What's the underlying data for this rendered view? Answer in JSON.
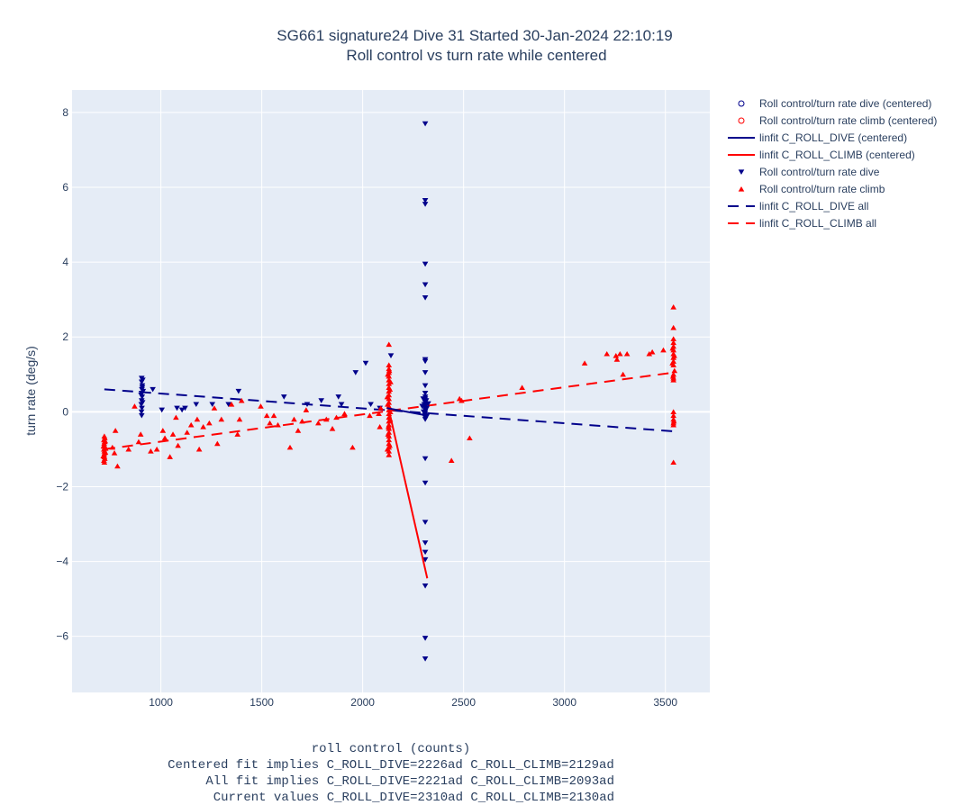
{
  "chart_data": {
    "type": "scatter",
    "title": "SG661 signature24 Dive 31 Started 30-Jan-2024 22:10:19",
    "subtitle": "Roll control vs turn rate while centered",
    "xlabel_lines": [
      "roll control (counts)",
      "Centered fit implies C_ROLL_DIVE=2226ad C_ROLL_CLIMB=2129ad",
      "All fit implies C_ROLL_DIVE=2221ad C_ROLL_CLIMB=2093ad",
      "Current values C_ROLL_DIVE=2310ad C_ROLL_CLIMB=2130ad"
    ],
    "ylabel": "turn rate (deg/s)",
    "xlim": [
      560,
      3720
    ],
    "ylim": [
      -7.5,
      8.6
    ],
    "x_ticks": [
      1000,
      1500,
      2000,
      2500,
      3000,
      3500
    ],
    "y_ticks": [
      -6,
      -4,
      -2,
      0,
      2,
      4,
      6,
      8
    ],
    "grid": true,
    "legend_position": "right",
    "colors": {
      "dive": "#00008b",
      "climb": "#ff0000",
      "plot_bg": "#e5ecf6",
      "grid": "#ffffff"
    },
    "series": [
      {
        "name": "Roll control/turn rate dive (centered)",
        "kind": "markers",
        "marker": "circle-open",
        "color": "#00008b",
        "points": []
      },
      {
        "name": "Roll control/turn rate climb (centered)",
        "kind": "markers",
        "marker": "circle-open",
        "color": "#ff0000",
        "points": []
      },
      {
        "name": "linfit C_ROLL_DIVE (centered)",
        "kind": "line",
        "dash": "solid",
        "color": "#00008b",
        "points": [
          [
            2120,
            0.1
          ],
          [
            2320,
            -0.1
          ]
        ]
      },
      {
        "name": "linfit C_ROLL_CLIMB (centered)",
        "kind": "line",
        "dash": "solid",
        "color": "#ff0000",
        "points": [
          [
            2130,
            0.05
          ],
          [
            2320,
            -4.45
          ]
        ]
      },
      {
        "name": "Roll control/turn rate dive",
        "kind": "markers",
        "marker": "triangle-down",
        "color": "#00008b",
        "points": [
          [
            905,
            0.9
          ],
          [
            905,
            0.8
          ],
          [
            908,
            0.7
          ],
          [
            906,
            0.6
          ],
          [
            904,
            0.5
          ],
          [
            907,
            0.4
          ],
          [
            905,
            0.3
          ],
          [
            903,
            0.2
          ],
          [
            906,
            0.1
          ],
          [
            904,
            0.0
          ],
          [
            905,
            -0.1
          ],
          [
            910,
            0.85
          ],
          [
            908,
            0.65
          ],
          [
            902,
            0.45
          ],
          [
            909,
            0.25
          ],
          [
            912,
            0.55
          ],
          [
            960,
            0.6
          ],
          [
            1005,
            0.05
          ],
          [
            1080,
            0.1
          ],
          [
            1105,
            0.05
          ],
          [
            1120,
            0.1
          ],
          [
            1175,
            0.2
          ],
          [
            1255,
            0.2
          ],
          [
            1335,
            0.2
          ],
          [
            1385,
            0.55
          ],
          [
            1610,
            0.4
          ],
          [
            1725,
            0.2
          ],
          [
            1795,
            0.3
          ],
          [
            1880,
            0.4
          ],
          [
            1895,
            0.2
          ],
          [
            1965,
            1.05
          ],
          [
            2015,
            1.3
          ],
          [
            2040,
            0.2
          ],
          [
            2085,
            0.1
          ],
          [
            2140,
            1.5
          ],
          [
            2310,
            0.4
          ],
          [
            2310,
            0.35
          ],
          [
            2310,
            0.3
          ],
          [
            2310,
            0.25
          ],
          [
            2310,
            0.2
          ],
          [
            2310,
            0.15
          ],
          [
            2310,
            0.1
          ],
          [
            2310,
            0.05
          ],
          [
            2310,
            0.0
          ],
          [
            2310,
            -0.05
          ],
          [
            2310,
            -0.1
          ],
          [
            2310,
            -0.15
          ],
          [
            2310,
            -0.2
          ],
          [
            2315,
            0.3
          ],
          [
            2305,
            0.2
          ],
          [
            2318,
            0.1
          ],
          [
            2302,
            0.0
          ],
          [
            2320,
            -0.1
          ],
          [
            2300,
            0.35
          ],
          [
            2325,
            0.22
          ],
          [
            2295,
            0.15
          ],
          [
            2310,
            1.4
          ],
          [
            2310,
            1.35
          ],
          [
            2310,
            1.05
          ],
          [
            2310,
            0.7
          ],
          [
            2310,
            0.5
          ],
          [
            2310,
            7.7
          ],
          [
            2310,
            5.65
          ],
          [
            2310,
            5.55
          ],
          [
            2310,
            3.95
          ],
          [
            2310,
            3.4
          ],
          [
            2310,
            3.05
          ],
          [
            2310,
            -1.25
          ],
          [
            2310,
            -1.9
          ],
          [
            2310,
            -2.95
          ],
          [
            2310,
            -3.5
          ],
          [
            2310,
            -3.75
          ],
          [
            2310,
            -3.95
          ],
          [
            2310,
            -4.65
          ],
          [
            2310,
            -6.05
          ],
          [
            2310,
            -6.6
          ]
        ]
      },
      {
        "name": "Roll control/turn rate climb",
        "kind": "markers",
        "marker": "triangle-up",
        "color": "#ff0000",
        "points": [
          [
            720,
            -0.65
          ],
          [
            722,
            -0.7
          ],
          [
            718,
            -0.75
          ],
          [
            721,
            -0.8
          ],
          [
            719,
            -0.85
          ],
          [
            720,
            -0.9
          ],
          [
            722,
            -0.95
          ],
          [
            718,
            -1.0
          ],
          [
            720,
            -1.05
          ],
          [
            721,
            -1.1
          ],
          [
            719,
            -1.15
          ],
          [
            720,
            -1.2
          ],
          [
            722,
            -1.25
          ],
          [
            718,
            -1.3
          ],
          [
            720,
            -1.35
          ],
          [
            724,
            -0.78
          ],
          [
            716,
            -0.92
          ],
          [
            725,
            -1.08
          ],
          [
            715,
            -1.18
          ],
          [
            726,
            -0.98
          ],
          [
            760,
            -0.95
          ],
          [
            770,
            -1.1
          ],
          [
            775,
            -0.5
          ],
          [
            785,
            -1.45
          ],
          [
            840,
            -1.0
          ],
          [
            870,
            0.15
          ],
          [
            890,
            -0.8
          ],
          [
            900,
            -0.6
          ],
          [
            950,
            -1.05
          ],
          [
            980,
            -1.0
          ],
          [
            1010,
            -0.5
          ],
          [
            1020,
            -0.7
          ],
          [
            1045,
            -1.2
          ],
          [
            1060,
            -0.6
          ],
          [
            1075,
            -0.15
          ],
          [
            1085,
            -0.9
          ],
          [
            1130,
            -0.55
          ],
          [
            1150,
            -0.35
          ],
          [
            1180,
            -0.2
          ],
          [
            1190,
            -1.0
          ],
          [
            1210,
            -0.4
          ],
          [
            1240,
            -0.3
          ],
          [
            1265,
            0.1
          ],
          [
            1280,
            -0.85
          ],
          [
            1300,
            -0.2
          ],
          [
            1350,
            0.2
          ],
          [
            1380,
            -0.6
          ],
          [
            1390,
            -0.2
          ],
          [
            1400,
            0.3
          ],
          [
            1495,
            0.15
          ],
          [
            1525,
            -0.1
          ],
          [
            1540,
            -0.3
          ],
          [
            1560,
            -0.1
          ],
          [
            1580,
            -0.35
          ],
          [
            1640,
            -0.95
          ],
          [
            1660,
            -0.2
          ],
          [
            1680,
            -0.5
          ],
          [
            1700,
            -0.25
          ],
          [
            1720,
            0.05
          ],
          [
            1780,
            -0.3
          ],
          [
            1820,
            -0.2
          ],
          [
            1850,
            -0.45
          ],
          [
            1870,
            -0.15
          ],
          [
            1910,
            -0.05
          ],
          [
            1950,
            -0.95
          ],
          [
            2035,
            -0.1
          ],
          [
            2080,
            -0.05
          ],
          [
            2085,
            -0.4
          ],
          [
            2090,
            0.1
          ],
          [
            2130,
            1.8
          ],
          [
            2130,
            1.25
          ],
          [
            2130,
            1.15
          ],
          [
            2130,
            1.05
          ],
          [
            2130,
            0.95
          ],
          [
            2130,
            0.85
          ],
          [
            2130,
            0.75
          ],
          [
            2130,
            0.65
          ],
          [
            2130,
            0.55
          ],
          [
            2130,
            0.45
          ],
          [
            2130,
            0.35
          ],
          [
            2130,
            0.25
          ],
          [
            2130,
            0.15
          ],
          [
            2130,
            0.05
          ],
          [
            2130,
            -0.05
          ],
          [
            2130,
            -0.15
          ],
          [
            2130,
            -0.25
          ],
          [
            2130,
            -0.35
          ],
          [
            2130,
            -0.45
          ],
          [
            2130,
            -0.55
          ],
          [
            2130,
            -0.65
          ],
          [
            2130,
            -0.75
          ],
          [
            2130,
            -0.85
          ],
          [
            2130,
            -0.95
          ],
          [
            2130,
            -1.05
          ],
          [
            2130,
            -1.15
          ],
          [
            2125,
            1.0
          ],
          [
            2135,
            0.6
          ],
          [
            2124,
            0.2
          ],
          [
            2136,
            -0.2
          ],
          [
            2126,
            -0.6
          ],
          [
            2134,
            -0.9
          ],
          [
            2122,
            0.4
          ],
          [
            2138,
            0.8
          ],
          [
            2128,
            -0.4
          ],
          [
            2132,
            1.1
          ],
          [
            2123,
            -1.0
          ],
          [
            2137,
            0.0
          ],
          [
            2440,
            -1.3
          ],
          [
            2480,
            0.35
          ],
          [
            2490,
            0.3
          ],
          [
            2530,
            -0.7
          ],
          [
            2790,
            0.65
          ],
          [
            3100,
            1.3
          ],
          [
            3210,
            1.55
          ],
          [
            3255,
            1.5
          ],
          [
            3260,
            1.4
          ],
          [
            3275,
            1.55
          ],
          [
            3290,
            1.0
          ],
          [
            3310,
            1.55
          ],
          [
            3420,
            1.55
          ],
          [
            3435,
            1.6
          ],
          [
            3490,
            1.65
          ],
          [
            3540,
            2.8
          ],
          [
            3540,
            2.25
          ],
          [
            3540,
            1.95
          ],
          [
            3540,
            1.85
          ],
          [
            3540,
            1.75
          ],
          [
            3540,
            1.65
          ],
          [
            3540,
            1.55
          ],
          [
            3540,
            1.45
          ],
          [
            3540,
            1.35
          ],
          [
            3540,
            1.25
          ],
          [
            3540,
            1.0
          ],
          [
            3540,
            0.9
          ],
          [
            3540,
            0.85
          ],
          [
            3540,
            0.0
          ],
          [
            3540,
            -0.1
          ],
          [
            3540,
            -0.2
          ],
          [
            3540,
            -0.3
          ],
          [
            3540,
            -0.35
          ],
          [
            3540,
            -1.35
          ],
          [
            3536,
            1.7
          ],
          [
            3544,
            1.5
          ],
          [
            3535,
            1.3
          ],
          [
            3545,
            1.1
          ],
          [
            3538,
            0.95
          ],
          [
            3542,
            -0.25
          ]
        ]
      },
      {
        "name": "linfit C_ROLL_DIVE all",
        "kind": "line",
        "dash": "dash",
        "color": "#00008b",
        "points": [
          [
            720,
            0.6
          ],
          [
            3540,
            -0.52
          ]
        ]
      },
      {
        "name": "linfit C_ROLL_CLIMB all",
        "kind": "line",
        "dash": "dash",
        "color": "#ff0000",
        "points": [
          [
            720,
            -1.0
          ],
          [
            3540,
            1.05
          ]
        ]
      }
    ]
  }
}
